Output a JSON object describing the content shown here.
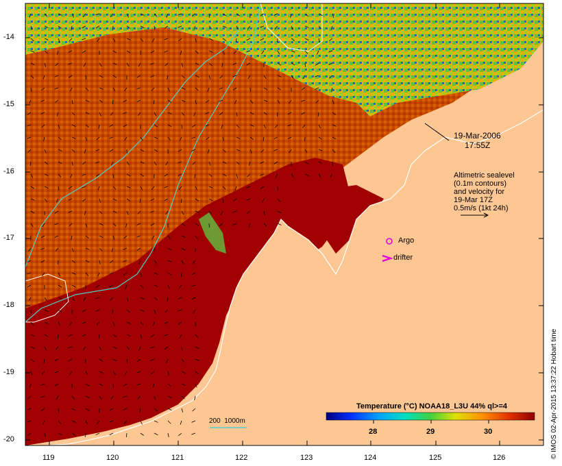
{
  "map": {
    "colors": {
      "land": "#fdc794",
      "warm": "#a00000",
      "mid": "#d04800",
      "cloud": "#ffffff",
      "contour": "#4fd1c8",
      "argo": "#e000e0",
      "drifter": "#e000e0"
    },
    "lon_ticks": [
      "119",
      "120",
      "121",
      "122",
      "123",
      "124",
      "125",
      "126"
    ],
    "lat_ticks": [
      "-14",
      "-15",
      "-16",
      "-17",
      "-18",
      "-19",
      "-20"
    ],
    "date_line1": "19-Mar-2006",
    "date_line2": "17:55Z",
    "altimetry": [
      "Altimetric sealevel",
      "(0.1m contours)",
      "and velocity for",
      "19-Mar 17Z",
      "0.5m/s (1kt 24h)"
    ],
    "argo_label": "Argo",
    "drifter_label": "drifter",
    "bathy_label": "200  1000m",
    "colorbar": {
      "title": "Temperature (°C) NOAA18_L3U 44% ql>=4",
      "ticks": [
        "28",
        "29",
        "30"
      ]
    },
    "credit": "© IMOS 02-Apr-2015 13:37:22 Hobart time"
  }
}
